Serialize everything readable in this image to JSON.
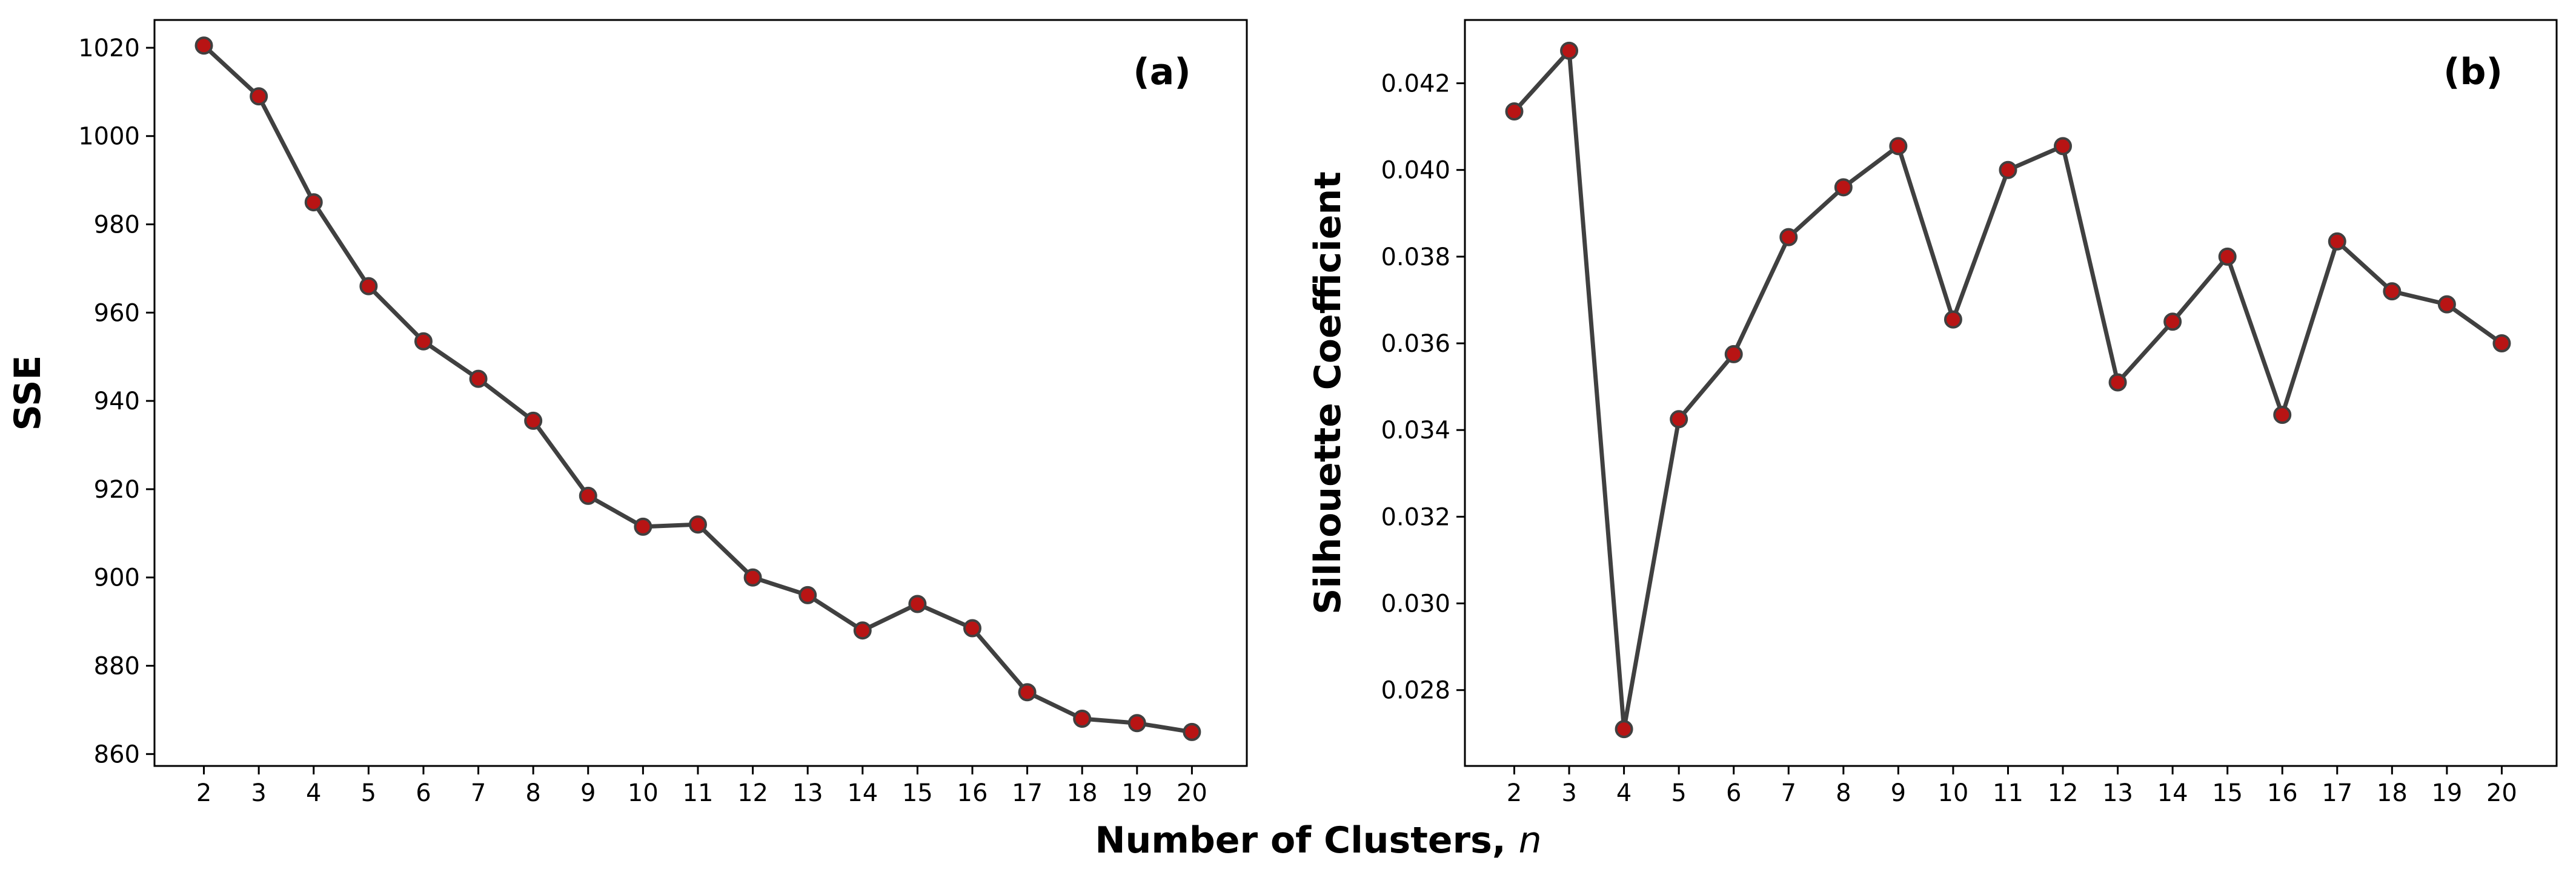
{
  "figure": {
    "xlabel_text": "Number of Clusters, ",
    "xlabel_var": "n"
  },
  "colors": {
    "line": "#404040",
    "marker_fill": "#b81414",
    "marker_edge": "#404040",
    "axis": "#000000"
  },
  "chart_data": [
    {
      "type": "line",
      "panel_label": "(a)",
      "ylabel": "SSE",
      "xlabel": "Number of Clusters, n",
      "x": [
        2,
        3,
        4,
        5,
        6,
        7,
        8,
        9,
        10,
        11,
        12,
        13,
        14,
        15,
        16,
        17,
        18,
        19,
        20
      ],
      "values": [
        1020.5,
        1009,
        985,
        966,
        953.5,
        945,
        935.5,
        918.5,
        911.5,
        912,
        900,
        896,
        888,
        894,
        888.5,
        874,
        868,
        867,
        865
      ],
      "yticks": [
        860,
        880,
        900,
        920,
        940,
        960,
        980,
        1000,
        1020
      ],
      "ytick_labels": [
        "860",
        "880",
        "900",
        "920",
        "940",
        "960",
        "980",
        "1000",
        "1020"
      ],
      "ylim": [
        857.3,
        1026.3
      ],
      "xlim": [
        1.1,
        21
      ]
    },
    {
      "type": "line",
      "panel_label": "(b)",
      "ylabel": "Silhouette Coefficient",
      "xlabel": "Number of Clusters, n",
      "x": [
        2,
        3,
        4,
        5,
        6,
        7,
        8,
        9,
        10,
        11,
        12,
        13,
        14,
        15,
        16,
        17,
        18,
        19,
        20
      ],
      "values": [
        0.04135,
        0.04275,
        0.0271,
        0.03425,
        0.03575,
        0.03845,
        0.0396,
        0.04055,
        0.03655,
        0.04,
        0.04055,
        0.0351,
        0.0365,
        0.038,
        0.03435,
        0.03835,
        0.0372,
        0.0369,
        0.036
      ],
      "yticks": [
        0.028,
        0.03,
        0.032,
        0.034,
        0.036,
        0.038,
        0.04,
        0.042
      ],
      "ytick_labels": [
        "0.028",
        "0.030",
        "0.032",
        "0.034",
        "0.036",
        "0.038",
        "0.040",
        "0.042"
      ],
      "ylim": [
        0.02625,
        0.04346
      ],
      "xlim": [
        1.1,
        21
      ]
    }
  ]
}
